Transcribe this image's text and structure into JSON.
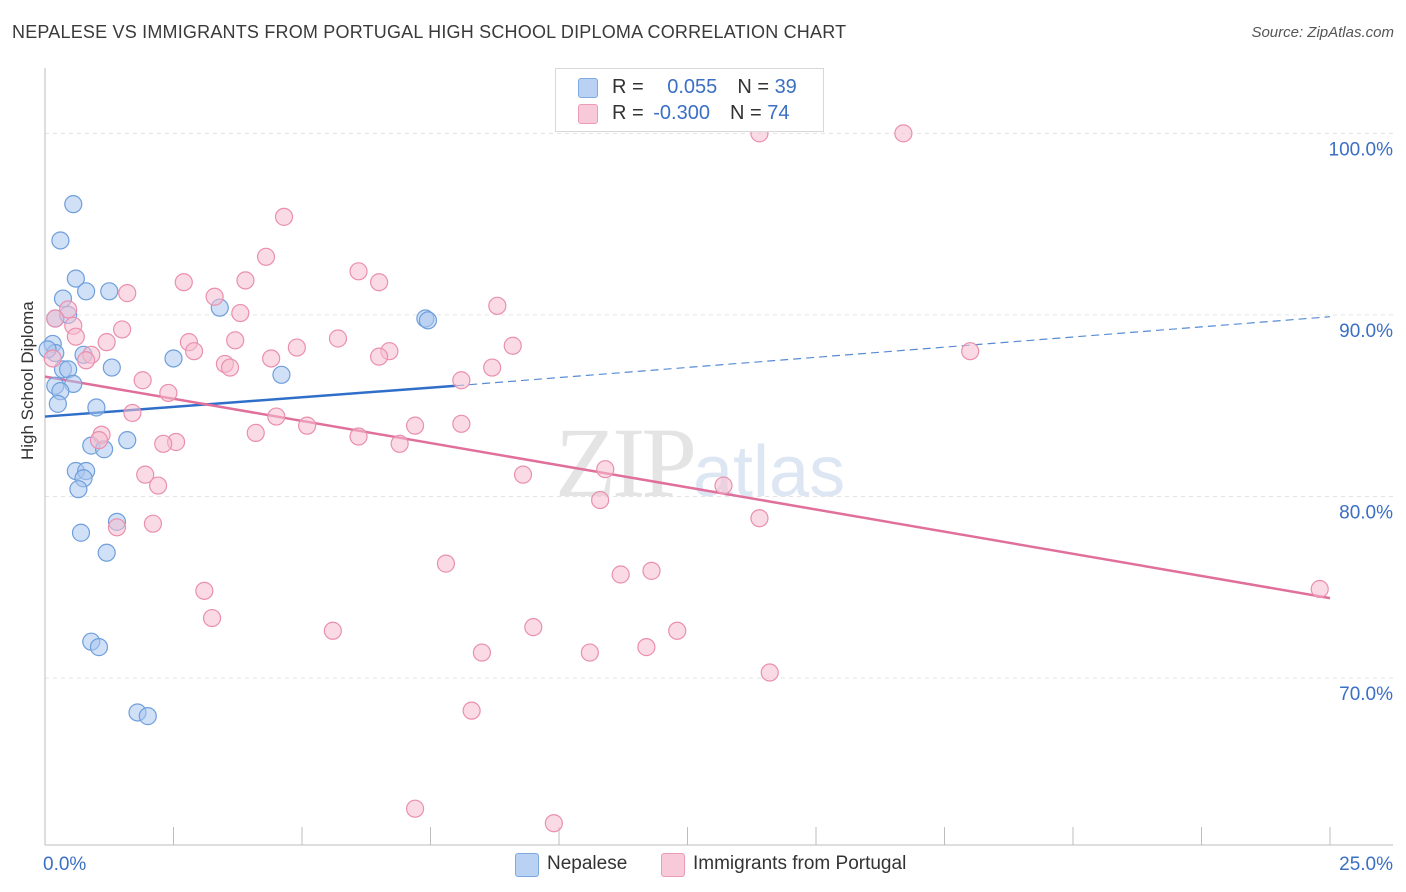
{
  "title": "NEPALESE VS IMMIGRANTS FROM PORTUGAL HIGH SCHOOL DIPLOMA CORRELATION CHART",
  "source": "Source: ZipAtlas.com",
  "watermark": {
    "zip": "ZIP",
    "atlas": "atlas"
  },
  "legend_top": {
    "row1": {
      "r_label": "R = ",
      "r_value": "0.055",
      "n_label": "N = ",
      "n_value": "39"
    },
    "row2": {
      "r_label": "R = ",
      "r_value": "-0.300",
      "n_label": "N = ",
      "n_value": "74"
    }
  },
  "legend_bottom": {
    "series1": "Nepalese",
    "series2": "Immigrants from Portugal"
  },
  "colors": {
    "blue_fill": "#a9c7ee",
    "blue_stroke": "#6f9fdc",
    "blue_line": "#2f6fc9",
    "pink_fill": "#f5bed0",
    "pink_stroke": "#ea8fae",
    "pink_line": "#e0709b",
    "axis_text": "#3a6fc4",
    "grid": "#e3e3e3"
  },
  "chart_data": {
    "type": "scatter",
    "title": "NEPALESE VS IMMIGRANTS FROM PORTUGAL HIGH SCHOOL DIPLOMA CORRELATION CHART",
    "xlabel": "",
    "ylabel": "High School Diploma",
    "xlim": [
      0,
      25
    ],
    "ylim": [
      60.8,
      103.6
    ],
    "x_tick_labels": [
      "0.0%",
      "25.0%"
    ],
    "y_ticks": [
      70,
      80,
      90,
      100
    ],
    "y_tick_labels": [
      "70.0%",
      "80.0%",
      "90.0%",
      "100.0%"
    ],
    "series": [
      {
        "name": "Nepalese",
        "r": 0.055,
        "n": 39,
        "trend": {
          "x0": 0.0,
          "y0": 84.4,
          "x1": 8.0,
          "y1": 86.1,
          "dash_to_x": 25.0,
          "dash_to_y": 89.9
        },
        "points": [
          [
            0.55,
            96.1
          ],
          [
            0.3,
            94.1
          ],
          [
            0.6,
            92.0
          ],
          [
            0.8,
            91.3
          ],
          [
            1.25,
            91.3
          ],
          [
            0.35,
            90.9
          ],
          [
            0.2,
            89.8
          ],
          [
            0.45,
            90.0
          ],
          [
            3.4,
            90.4
          ],
          [
            7.4,
            89.8
          ],
          [
            7.45,
            89.7
          ],
          [
            0.15,
            88.4
          ],
          [
            0.2,
            87.9
          ],
          [
            0.75,
            87.8
          ],
          [
            2.5,
            87.6
          ],
          [
            0.35,
            87.0
          ],
          [
            0.45,
            87.0
          ],
          [
            1.3,
            87.1
          ],
          [
            4.6,
            86.7
          ],
          [
            0.2,
            86.1
          ],
          [
            0.55,
            86.2
          ],
          [
            0.3,
            85.8
          ],
          [
            0.25,
            85.1
          ],
          [
            1.0,
            84.9
          ],
          [
            1.6,
            83.1
          ],
          [
            0.9,
            82.8
          ],
          [
            1.15,
            82.6
          ],
          [
            0.6,
            81.4
          ],
          [
            0.8,
            81.4
          ],
          [
            0.75,
            81.0
          ],
          [
            0.65,
            80.4
          ],
          [
            1.4,
            78.6
          ],
          [
            0.7,
            78.0
          ],
          [
            1.2,
            76.9
          ],
          [
            0.9,
            72.0
          ],
          [
            1.05,
            71.7
          ],
          [
            1.8,
            68.1
          ],
          [
            2.0,
            67.9
          ],
          [
            0.05,
            88.1
          ]
        ]
      },
      {
        "name": "Immigrants from Portugal",
        "r": -0.3,
        "n": 74,
        "trend": {
          "x0": 0.0,
          "y0": 86.6,
          "x1": 25.0,
          "y1": 74.4
        },
        "points": [
          [
            13.9,
            100.0
          ],
          [
            16.7,
            100.0
          ],
          [
            4.65,
            95.4
          ],
          [
            4.3,
            93.2
          ],
          [
            6.1,
            92.4
          ],
          [
            6.5,
            91.8
          ],
          [
            3.9,
            91.9
          ],
          [
            2.7,
            91.8
          ],
          [
            1.6,
            91.2
          ],
          [
            3.3,
            91.0
          ],
          [
            0.45,
            90.3
          ],
          [
            8.8,
            90.5
          ],
          [
            3.8,
            90.1
          ],
          [
            0.2,
            89.8
          ],
          [
            0.55,
            89.4
          ],
          [
            1.5,
            89.2
          ],
          [
            0.6,
            88.8
          ],
          [
            2.8,
            88.5
          ],
          [
            3.7,
            88.6
          ],
          [
            5.7,
            88.7
          ],
          [
            1.2,
            88.5
          ],
          [
            9.1,
            88.3
          ],
          [
            4.9,
            88.2
          ],
          [
            2.9,
            88.0
          ],
          [
            6.7,
            88.0
          ],
          [
            0.9,
            87.8
          ],
          [
            0.15,
            87.6
          ],
          [
            4.4,
            87.6
          ],
          [
            6.5,
            87.7
          ],
          [
            3.5,
            87.3
          ],
          [
            3.6,
            87.1
          ],
          [
            8.7,
            87.1
          ],
          [
            0.8,
            87.5
          ],
          [
            18.0,
            88.0
          ],
          [
            1.9,
            86.4
          ],
          [
            8.1,
            86.4
          ],
          [
            2.4,
            85.7
          ],
          [
            1.7,
            84.6
          ],
          [
            4.5,
            84.4
          ],
          [
            5.1,
            83.9
          ],
          [
            7.2,
            83.9
          ],
          [
            8.1,
            84.0
          ],
          [
            4.1,
            83.5
          ],
          [
            6.1,
            83.3
          ],
          [
            1.1,
            83.4
          ],
          [
            1.05,
            83.1
          ],
          [
            2.55,
            83.0
          ],
          [
            2.3,
            82.9
          ],
          [
            6.9,
            82.9
          ],
          [
            1.95,
            81.2
          ],
          [
            9.3,
            81.2
          ],
          [
            10.9,
            81.5
          ],
          [
            2.2,
            80.6
          ],
          [
            13.2,
            80.6
          ],
          [
            10.8,
            79.8
          ],
          [
            13.9,
            78.8
          ],
          [
            2.1,
            78.5
          ],
          [
            1.4,
            78.3
          ],
          [
            7.8,
            76.3
          ],
          [
            11.2,
            75.7
          ],
          [
            11.8,
            75.9
          ],
          [
            3.1,
            74.8
          ],
          [
            24.8,
            74.9
          ],
          [
            3.25,
            73.3
          ],
          [
            9.5,
            72.8
          ],
          [
            5.6,
            72.6
          ],
          [
            12.3,
            72.6
          ],
          [
            8.5,
            71.4
          ],
          [
            10.6,
            71.4
          ],
          [
            11.7,
            71.7
          ],
          [
            14.1,
            70.3
          ],
          [
            8.3,
            68.2
          ],
          [
            7.2,
            62.8
          ],
          [
            9.9,
            62.0
          ]
        ]
      }
    ]
  }
}
